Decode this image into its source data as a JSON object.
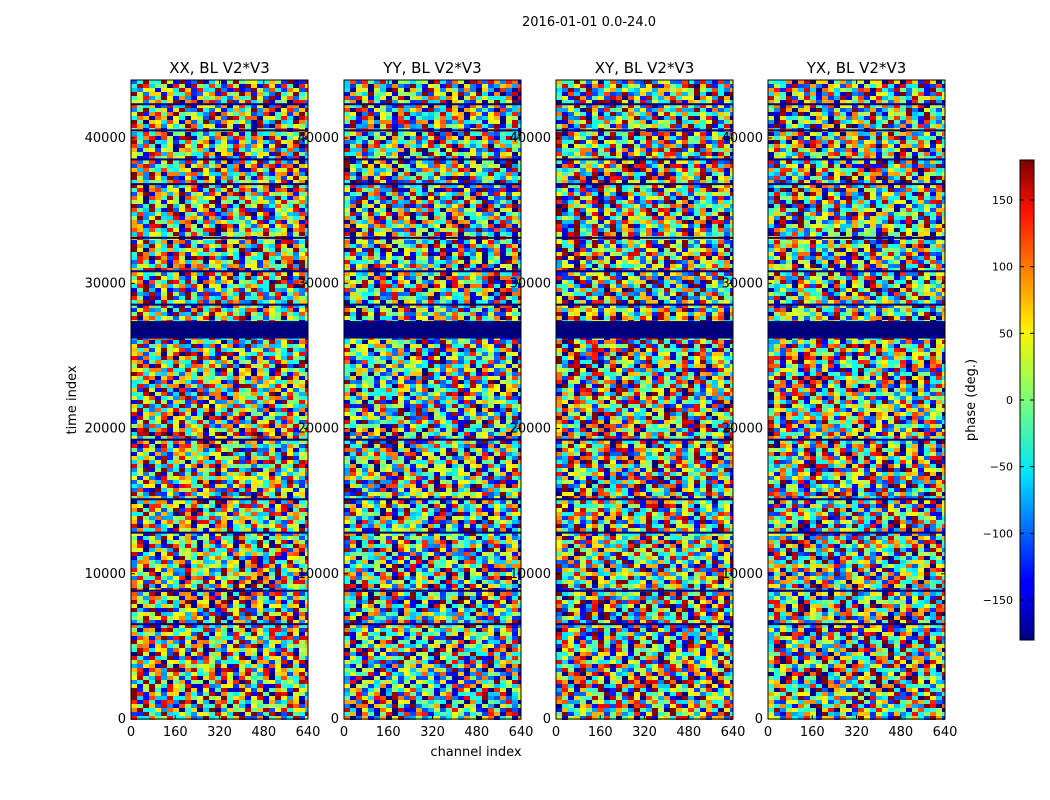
{
  "figure": {
    "suptitle": "2016-01-01 0.0-24.0"
  },
  "chart_data": {
    "type": "heatmap",
    "colormap": "jet",
    "xlabel": "channel index",
    "ylabel": "time index",
    "xlim": [
      0,
      640
    ],
    "ylim": [
      0,
      44000
    ],
    "xticks": [
      "0",
      "160",
      "320",
      "480",
      "640"
    ],
    "yticks": [
      "0",
      "10000",
      "20000",
      "30000",
      "40000"
    ],
    "grid": false,
    "panels": [
      {
        "title": "XX, BL V2*V3",
        "id": "xx"
      },
      {
        "title": "YY, BL V2*V3",
        "id": "yy"
      },
      {
        "title": "XY, BL V2*V3",
        "id": "xy"
      },
      {
        "title": "YX, BL V2*V3",
        "id": "yx"
      }
    ],
    "colorbar": {
      "label": "phase (deg.)",
      "range": [
        -180,
        180
      ],
      "ticks": [
        "150",
        "100",
        "50",
        "0",
        "−50",
        "−100",
        "−150"
      ]
    }
  }
}
